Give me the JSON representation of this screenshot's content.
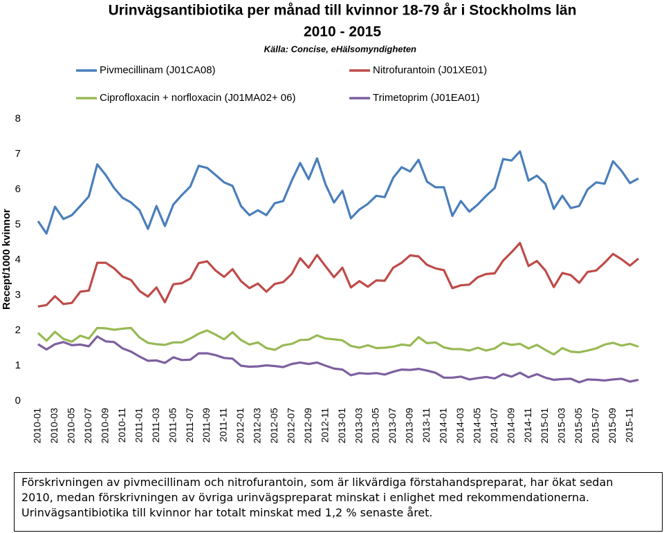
{
  "chart_data": {
    "type": "line",
    "title": "Urinvägsantibiotika per månad till kvinnor 18-79 år i Stockholms län",
    "subtitle": "2010 - 2015",
    "source": "Källa: Concise, eHälsomyndigheten",
    "y_label": "Recept/1000 kvinnor",
    "categories": [
      "2010-01",
      null,
      "2010-03",
      null,
      "2010-05",
      null,
      "2010-07",
      null,
      "2010-09",
      null,
      "2010-11",
      null,
      "2011-01",
      null,
      "2011-03",
      null,
      "2011-05",
      null,
      "2011-07",
      null,
      "2011-09",
      null,
      "2011-11",
      null,
      "2012-01",
      null,
      "2012-03",
      null,
      "2012-05",
      null,
      "2012-07",
      null,
      "2012-09",
      null,
      "2012-11",
      null,
      "2013-01",
      null,
      "2013-03",
      null,
      "2013-05",
      null,
      "2013-07",
      null,
      "2013-09",
      null,
      "2013-11",
      null,
      "2014-01",
      null,
      "2014-03",
      null,
      "2014-05",
      null,
      "2014-07",
      null,
      "2014-09",
      null,
      "2014-11",
      null,
      "2015-01",
      null,
      "2015-03",
      null,
      "2015-05",
      null,
      "2015-07",
      null,
      "2015-09",
      null,
      "2015-11",
      null
    ],
    "series": [
      {
        "name": "Pivmecillinam (J01CA08)",
        "color": "#4a7ebb",
        "values": [
          5.1,
          4.75,
          5.51,
          5.16,
          5.27,
          5.53,
          5.8,
          6.71,
          6.41,
          6.04,
          5.76,
          5.63,
          5.41,
          4.88,
          5.53,
          4.96,
          5.57,
          5.84,
          6.08,
          6.67,
          6.61,
          6.41,
          6.2,
          6.1,
          5.53,
          5.27,
          5.41,
          5.27,
          5.61,
          5.67,
          6.25,
          6.75,
          6.29,
          6.88,
          6.14,
          5.63,
          5.96,
          5.18,
          5.43,
          5.59,
          5.82,
          5.78,
          6.33,
          6.63,
          6.51,
          6.84,
          6.22,
          6.06,
          6.06,
          5.25,
          5.67,
          5.37,
          5.57,
          5.82,
          6.04,
          6.86,
          6.82,
          7.08,
          6.25,
          6.39,
          6.16,
          5.45,
          5.82,
          5.47,
          5.53,
          6.0,
          6.2,
          6.16,
          6.8,
          6.53,
          6.18,
          6.31
        ]
      },
      {
        "name": "Nitrofurantoin (J01XE01)",
        "color": "#be4b48",
        "values": [
          2.68,
          2.72,
          2.97,
          2.75,
          2.78,
          3.1,
          3.13,
          3.92,
          3.92,
          3.76,
          3.53,
          3.43,
          3.12,
          2.96,
          3.22,
          2.8,
          3.31,
          3.34,
          3.47,
          3.91,
          3.96,
          3.7,
          3.52,
          3.74,
          3.4,
          3.2,
          3.33,
          3.1,
          3.32,
          3.37,
          3.6,
          4.05,
          3.78,
          4.14,
          3.82,
          3.51,
          3.78,
          3.22,
          3.4,
          3.24,
          3.42,
          3.41,
          3.78,
          3.92,
          4.13,
          4.1,
          3.86,
          3.76,
          3.71,
          3.2,
          3.28,
          3.3,
          3.51,
          3.6,
          3.62,
          3.98,
          4.22,
          4.48,
          3.83,
          3.97,
          3.7,
          3.23,
          3.63,
          3.57,
          3.35,
          3.66,
          3.7,
          3.92,
          4.17,
          4.02,
          3.84,
          4.04
        ]
      },
      {
        "name": "Ciprofloxacin + norfloxacin (J01MA02+ 06)",
        "color": "#98b954",
        "values": [
          1.93,
          1.71,
          1.96,
          1.76,
          1.68,
          1.85,
          1.77,
          2.07,
          2.06,
          2.02,
          2.05,
          2.07,
          1.8,
          1.65,
          1.61,
          1.59,
          1.66,
          1.66,
          1.77,
          1.91,
          2.0,
          1.88,
          1.75,
          1.95,
          1.73,
          1.6,
          1.66,
          1.5,
          1.45,
          1.58,
          1.62,
          1.73,
          1.74,
          1.86,
          1.77,
          1.75,
          1.72,
          1.56,
          1.51,
          1.58,
          1.5,
          1.51,
          1.54,
          1.6,
          1.57,
          1.81,
          1.64,
          1.66,
          1.52,
          1.47,
          1.47,
          1.43,
          1.51,
          1.43,
          1.49,
          1.65,
          1.59,
          1.62,
          1.49,
          1.59,
          1.45,
          1.32,
          1.5,
          1.4,
          1.38,
          1.43,
          1.49,
          1.6,
          1.65,
          1.57,
          1.62,
          1.54
        ]
      },
      {
        "name": "Trimetoprim (J01EA01)",
        "color": "#7d5fa0",
        "values": [
          1.61,
          1.46,
          1.61,
          1.67,
          1.58,
          1.6,
          1.55,
          1.83,
          1.69,
          1.67,
          1.49,
          1.4,
          1.26,
          1.14,
          1.15,
          1.08,
          1.24,
          1.16,
          1.17,
          1.35,
          1.35,
          1.3,
          1.22,
          1.2,
          1.0,
          0.97,
          0.98,
          1.01,
          0.99,
          0.96,
          1.05,
          1.09,
          1.05,
          1.09,
          1.0,
          0.92,
          0.89,
          0.73,
          0.79,
          0.77,
          0.79,
          0.75,
          0.83,
          0.89,
          0.88,
          0.91,
          0.86,
          0.8,
          0.66,
          0.66,
          0.69,
          0.61,
          0.65,
          0.68,
          0.64,
          0.76,
          0.69,
          0.8,
          0.67,
          0.76,
          0.66,
          0.6,
          0.62,
          0.63,
          0.53,
          0.61,
          0.6,
          0.58,
          0.61,
          0.63,
          0.55,
          0.6
        ]
      }
    ],
    "ylim": [
      0,
      8
    ],
    "yticks": [
      0,
      1,
      2,
      3,
      4,
      5,
      6,
      7,
      8
    ],
    "grid": false,
    "note": [
      "Förskrivningen av pivmecillinam och nitrofurantoin, som är likvärdiga förstahandspreparat, har ökat sedan",
      "2010, medan förskrivningen av övriga urinvägspreparat minskat i enlighet med rekommendationerna.",
      "Urinvägsantibiotika till kvinnor har totalt minskat med 1,2 % senaste året."
    ]
  }
}
